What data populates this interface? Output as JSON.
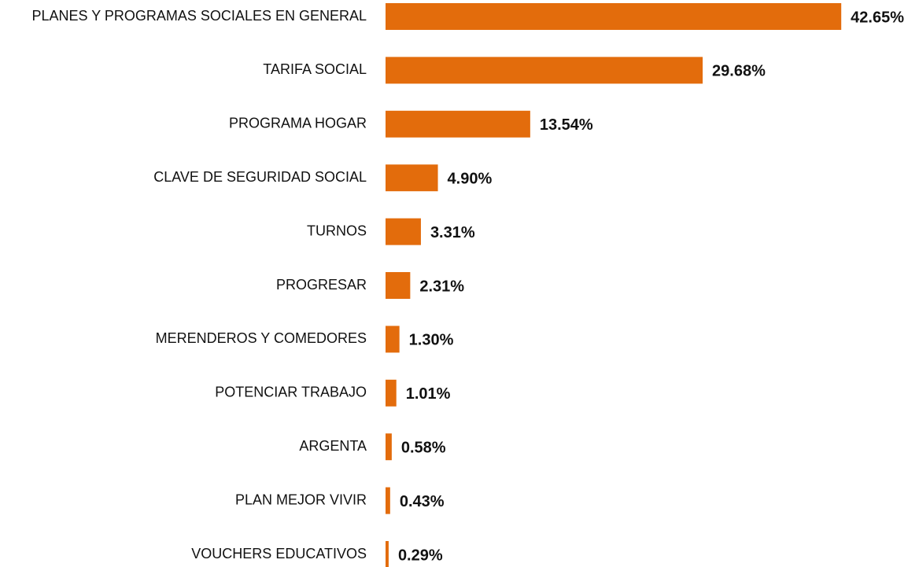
{
  "chart_data": {
    "type": "bar",
    "orientation": "horizontal",
    "color": "#e36c0c",
    "categories": [
      "PLANES Y PROGRAMAS SOCIALES EN GENERAL",
      "TARIFA SOCIAL",
      "PROGRAMA HOGAR",
      "CLAVE DE SEGURIDAD SOCIAL",
      "TURNOS",
      "PROGRESAR",
      "MERENDEROS Y COMEDORES",
      "POTENCIAR TRABAJO",
      "ARGENTA",
      "PLAN MEJOR VIVIR",
      "VOUCHERS EDUCATIVOS"
    ],
    "values": [
      42.65,
      29.68,
      13.54,
      4.9,
      3.31,
      2.31,
      1.3,
      1.01,
      0.58,
      0.43,
      0.29
    ],
    "value_labels": [
      "42.65%",
      "29.68%",
      "13.54%",
      "4.90%",
      "3.31%",
      "2.31%",
      "1.30%",
      "1.01%",
      "0.58%",
      "0.43%",
      "0.29%"
    ]
  }
}
